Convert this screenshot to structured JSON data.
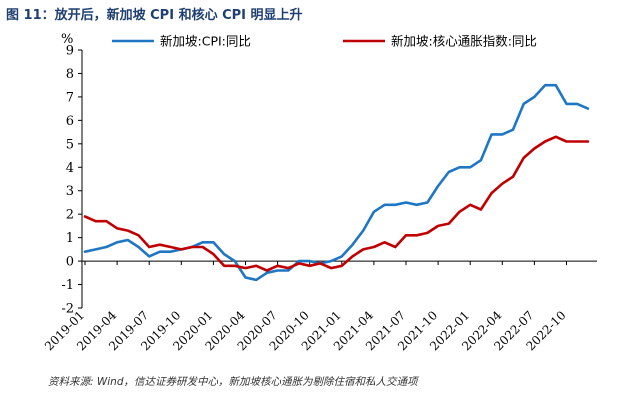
{
  "figure": {
    "title": "图 11：放开后，新加坡 CPI 和核心 CPI 明显上升",
    "source": "资料来源: Wind，信达证券研发中心，新加坡核心通胀为剔除住宿和私人交通项"
  },
  "chart_data": {
    "type": "line",
    "y_unit": "%",
    "ylim": [
      -2,
      9
    ],
    "y_ticks": [
      "-2",
      "-1",
      "0",
      "1",
      "2",
      "3",
      "4",
      "5",
      "6",
      "7",
      "8",
      "9"
    ],
    "x_tick_labels": [
      "2019-01",
      "2019-04",
      "2019-07",
      "2019-10",
      "2020-01",
      "2020-04",
      "2020-07",
      "2020-10",
      "2021-01",
      "2021-04",
      "2021-07",
      "2021-10",
      "2022-01",
      "2022-04",
      "2022-07",
      "2022-10"
    ],
    "x": [
      "2019-01",
      "2019-02",
      "2019-03",
      "2019-04",
      "2019-05",
      "2019-06",
      "2019-07",
      "2019-08",
      "2019-09",
      "2019-10",
      "2019-11",
      "2019-12",
      "2020-01",
      "2020-02",
      "2020-03",
      "2020-04",
      "2020-05",
      "2020-06",
      "2020-07",
      "2020-08",
      "2020-09",
      "2020-10",
      "2020-11",
      "2020-12",
      "2021-01",
      "2021-02",
      "2021-03",
      "2021-04",
      "2021-05",
      "2021-06",
      "2021-07",
      "2021-08",
      "2021-09",
      "2021-10",
      "2021-11",
      "2021-12",
      "2022-01",
      "2022-02",
      "2022-03",
      "2022-04",
      "2022-05",
      "2022-06",
      "2022-07",
      "2022-08",
      "2022-09",
      "2022-10",
      "2022-11",
      "2022-12"
    ],
    "legend_position": "top",
    "grid": false,
    "series": [
      {
        "name": "新加坡:CPI:同比",
        "color": "#1f77c4",
        "values": [
          0.4,
          0.5,
          0.6,
          0.8,
          0.9,
          0.6,
          0.2,
          0.4,
          0.4,
          0.5,
          0.6,
          0.8,
          0.8,
          0.3,
          0.0,
          -0.7,
          -0.8,
          -0.5,
          -0.4,
          -0.4,
          0.0,
          0.0,
          -0.1,
          0.0,
          0.2,
          0.7,
          1.3,
          2.1,
          2.4,
          2.4,
          2.5,
          2.4,
          2.5,
          3.2,
          3.8,
          4.0,
          4.0,
          4.3,
          5.4,
          5.4,
          5.6,
          6.7,
          7.0,
          7.5,
          7.5,
          6.7,
          6.7,
          6.5
        ]
      },
      {
        "name": "新加坡:核心通胀指数:同比",
        "color": "#c00000",
        "values": [
          1.9,
          1.7,
          1.7,
          1.4,
          1.3,
          1.1,
          0.6,
          0.7,
          0.6,
          0.5,
          0.6,
          0.6,
          0.3,
          -0.2,
          -0.2,
          -0.3,
          -0.2,
          -0.4,
          -0.2,
          -0.3,
          -0.1,
          -0.2,
          -0.1,
          -0.3,
          -0.2,
          0.2,
          0.5,
          0.6,
          0.8,
          0.6,
          1.1,
          1.1,
          1.2,
          1.5,
          1.6,
          2.1,
          2.4,
          2.2,
          2.9,
          3.3,
          3.6,
          4.4,
          4.8,
          5.1,
          5.3,
          5.1,
          5.1,
          5.1
        ]
      }
    ]
  }
}
